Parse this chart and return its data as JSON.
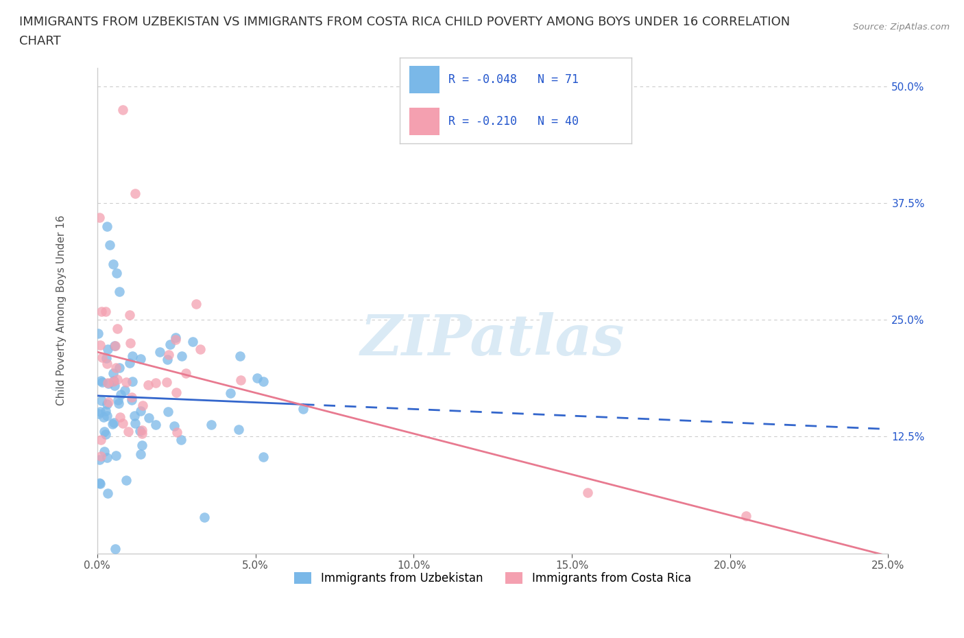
{
  "title_line1": "IMMIGRANTS FROM UZBEKISTAN VS IMMIGRANTS FROM COSTA RICA CHILD POVERTY AMONG BOYS UNDER 16 CORRELATION",
  "title_line2": "CHART",
  "source": "Source: ZipAtlas.com",
  "uzbekistan_color": "#7ab8e8",
  "uzbekistan_R": -0.048,
  "uzbekistan_N": 71,
  "uzbekistan_label": "Immigrants from Uzbekistan",
  "costarica_color": "#f4a0b0",
  "costarica_R": -0.21,
  "costarica_N": 40,
  "costarica_label": "Immigrants from Costa Rica",
  "xlim": [
    0.0,
    0.25
  ],
  "ylim": [
    0.0,
    0.52
  ],
  "xticks": [
    0.0,
    0.05,
    0.1,
    0.15,
    0.2,
    0.25
  ],
  "xticklabels": [
    "0.0%",
    "5.0%",
    "10.0%",
    "15.0%",
    "20.0%",
    "25.0%"
  ],
  "yticks": [
    0.0,
    0.125,
    0.25,
    0.375,
    0.5
  ],
  "yticklabels": [
    "",
    "12.5%",
    "25.0%",
    "37.5%",
    "50.0%"
  ],
  "grid_color": "#cccccc",
  "watermark": "ZIPatlas",
  "watermark_color": "#daeaf5",
  "background_color": "#ffffff",
  "title_fontsize": 13,
  "ylabel": "Child Poverty Among Boys Under 16",
  "legend_text_color": "#2255cc",
  "right_tick_color": "#2255cc",
  "legend_R1": "R = -0.048",
  "legend_N1": "N =  71",
  "legend_R2": "R = -0.210",
  "legend_N2": "N =  40"
}
